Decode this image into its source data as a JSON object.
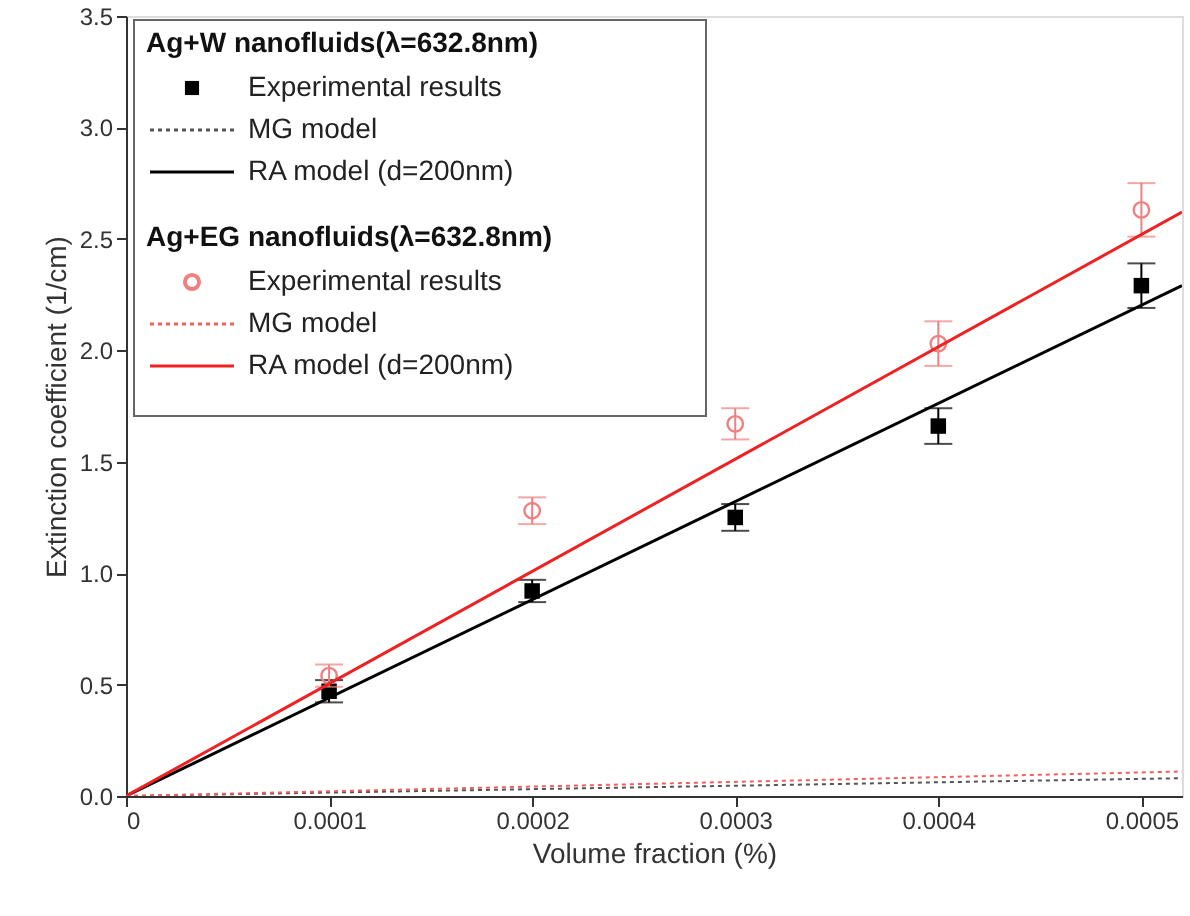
{
  "chart_data": {
    "type": "scatter",
    "xlabel": "Volume fraction (%)",
    "ylabel": "Extinction coefficient (1/cm)",
    "xlim": [
      0,
      0.00052
    ],
    "ylim": [
      0,
      3.5
    ],
    "xticks": [
      0,
      0.0001,
      0.0002,
      0.0003,
      0.0004,
      0.0005
    ],
    "yticks": [
      {
        "value": 0,
        "label": "0.0"
      },
      {
        "value": 0.5,
        "label": "0.5"
      },
      {
        "value": 1,
        "label": "1.0"
      },
      {
        "value": 1.5,
        "label": "1.5"
      },
      {
        "value": 2,
        "label": "2.0"
      },
      {
        "value": 2.5,
        "label": "2.5"
      },
      {
        "value": 3,
        "label": "3.0"
      },
      {
        "value": 3.5,
        "label": "3.5"
      }
    ],
    "grid": false,
    "legend": "top left",
    "annotations": [
      "Ag+W nanofluids(λ=632.8nm)",
      "Ag+EG nanofluids(λ=632.8nm)"
    ],
    "series": [
      {
        "name": "Experimental results",
        "marker": "square",
        "color": "#000000",
        "x": [
          0.0001,
          0.0002,
          0.0003,
          0.0004,
          0.0005
        ],
        "values": [
          0.47,
          0.92,
          1.25,
          1.66,
          2.29
        ],
        "errors": [
          0.05,
          0.05,
          0.06,
          0.08,
          0.1
        ]
      },
      {
        "name": "MG model",
        "type": "line",
        "line_style": "dotted",
        "color": "#555555",
        "x": [
          0,
          0.00052
        ],
        "values": [
          0,
          0.08
        ]
      },
      {
        "name": "RA model (d=200nm)",
        "type": "line",
        "line_style": "solid",
        "color": "#000000",
        "x": [
          0,
          0.00052
        ],
        "values": [
          0,
          2.29
        ]
      },
      {
        "name": "Experimental results",
        "marker": "circle",
        "color": "#f08080",
        "x": [
          0.0001,
          0.0002,
          0.0003,
          0.0004,
          0.0005
        ],
        "values": [
          0.54,
          1.28,
          1.67,
          2.03,
          2.63
        ],
        "errors": [
          0.05,
          0.06,
          0.07,
          0.1,
          0.12
        ]
      },
      {
        "name": "MG model",
        "type": "line",
        "line_style": "dotted",
        "color": "#f06060",
        "x": [
          0,
          0.00052
        ],
        "values": [
          0,
          0.11
        ]
      },
      {
        "name": "RA model (d=200nm)",
        "type": "line",
        "line_style": "solid",
        "color": "#ee2222",
        "x": [
          0,
          0.00052
        ],
        "values": [
          0,
          2.62
        ]
      }
    ]
  }
}
